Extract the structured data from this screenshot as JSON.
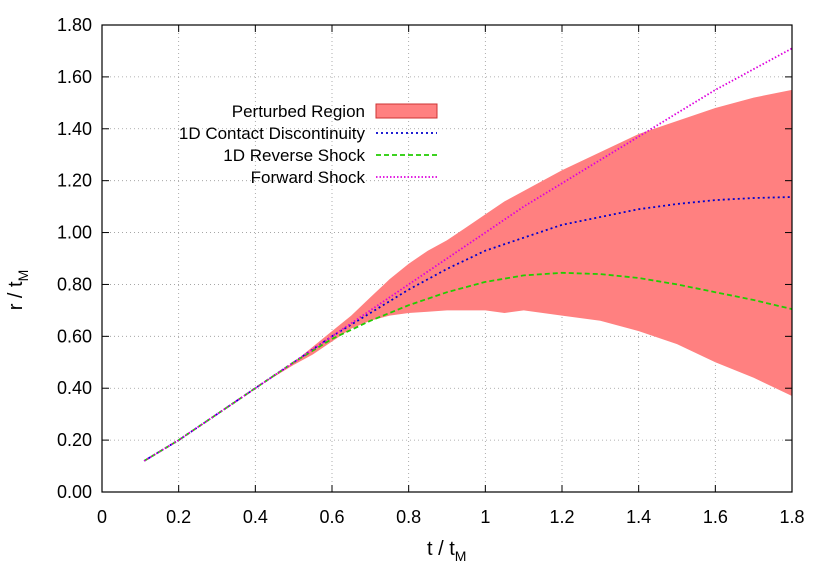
{
  "chart_data": {
    "type": "line",
    "xlabel": "t / t",
    "xlabel_sub": "M",
    "ylabel": "r / t",
    "ylabel_sub": "M",
    "xlim": [
      0,
      1.8
    ],
    "ylim": [
      0,
      1.8
    ],
    "x_ticks": [
      0,
      0.2,
      0.4,
      0.6,
      0.8,
      1,
      1.2,
      1.4,
      1.6,
      1.8
    ],
    "x_tick_labels": [
      "0",
      "0.2",
      "0.4",
      "0.6",
      "0.8",
      "1",
      "1.2",
      "1.4",
      "1.6",
      "1.8"
    ],
    "y_ticks": [
      0,
      0.2,
      0.4,
      0.6,
      0.8,
      1.0,
      1.2,
      1.4,
      1.6,
      1.8
    ],
    "y_tick_labels": [
      "0.00",
      "0.20",
      "0.40",
      "0.60",
      "0.80",
      "1.00",
      "1.20",
      "1.40",
      "1.60",
      "1.80"
    ],
    "grid": true,
    "legend_position": "top-left",
    "band": {
      "name": "Perturbed Region",
      "color": "#ff8080",
      "x": [
        0.11,
        0.2,
        0.3,
        0.4,
        0.5,
        0.55,
        0.6,
        0.65,
        0.7,
        0.75,
        0.8,
        0.85,
        0.9,
        0.95,
        1.0,
        1.05,
        1.1,
        1.2,
        1.3,
        1.4,
        1.5,
        1.6,
        1.7,
        1.8
      ],
      "lower": [
        0.12,
        0.2,
        0.3,
        0.4,
        0.49,
        0.53,
        0.58,
        0.63,
        0.66,
        0.68,
        0.69,
        0.695,
        0.7,
        0.7,
        0.7,
        0.69,
        0.7,
        0.68,
        0.66,
        0.62,
        0.57,
        0.5,
        0.44,
        0.37
      ],
      "upper": [
        0.12,
        0.2,
        0.3,
        0.4,
        0.5,
        0.56,
        0.62,
        0.68,
        0.75,
        0.82,
        0.88,
        0.93,
        0.97,
        1.02,
        1.07,
        1.12,
        1.16,
        1.24,
        1.31,
        1.38,
        1.43,
        1.48,
        1.52,
        1.55
      ]
    },
    "series": [
      {
        "name": "1D Contact Discontinuity",
        "color": "#0000cc",
        "dash": "dotted",
        "x": [
          0.11,
          0.2,
          0.3,
          0.4,
          0.5,
          0.6,
          0.7,
          0.8,
          0.9,
          1.0,
          1.1,
          1.2,
          1.3,
          1.4,
          1.5,
          1.6,
          1.7,
          1.8
        ],
        "y": [
          0.12,
          0.2,
          0.3,
          0.4,
          0.5,
          0.6,
          0.69,
          0.78,
          0.86,
          0.93,
          0.98,
          1.03,
          1.06,
          1.09,
          1.11,
          1.125,
          1.133,
          1.137
        ]
      },
      {
        "name": "1D Reverse Shock",
        "color": "#22cc00",
        "dash": "dashed",
        "x": [
          0.11,
          0.2,
          0.3,
          0.4,
          0.5,
          0.6,
          0.7,
          0.8,
          0.9,
          1.0,
          1.1,
          1.2,
          1.3,
          1.4,
          1.5,
          1.6,
          1.7,
          1.8
        ],
        "y": [
          0.12,
          0.2,
          0.3,
          0.4,
          0.5,
          0.59,
          0.66,
          0.72,
          0.77,
          0.81,
          0.835,
          0.845,
          0.84,
          0.825,
          0.8,
          0.77,
          0.74,
          0.705
        ]
      },
      {
        "name": "Forward Shock",
        "color": "#dd00dd",
        "dash": "fine-dotted",
        "x": [
          0.11,
          0.2,
          0.3,
          0.4,
          0.5,
          0.6,
          0.7,
          0.8,
          0.9,
          1.0,
          1.1,
          1.2,
          1.3,
          1.4,
          1.5,
          1.6,
          1.7,
          1.8
        ],
        "y": [
          0.12,
          0.2,
          0.3,
          0.4,
          0.5,
          0.6,
          0.7,
          0.8,
          0.9,
          1.0,
          1.1,
          1.19,
          1.28,
          1.37,
          1.46,
          1.55,
          1.63,
          1.71
        ]
      }
    ]
  }
}
